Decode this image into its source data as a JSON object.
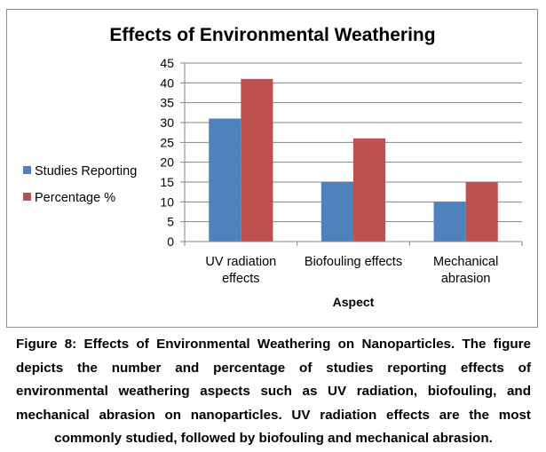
{
  "chart_data": {
    "type": "bar",
    "title": "Effects of Environmental Weathering",
    "xlabel": "Aspect",
    "ylabel": "",
    "categories": [
      [
        "UV radiation",
        "effects"
      ],
      [
        "Biofouling effects"
      ],
      [
        "Mechanical",
        "abrasion"
      ]
    ],
    "series": [
      {
        "name": "Studies Reporting",
        "color": "#4f81bd",
        "values": [
          31,
          15,
          10
        ]
      },
      {
        "name": "Percentage %",
        "color": "#c0504d",
        "values": [
          41,
          26,
          15
        ]
      }
    ],
    "ylim": [
      0,
      45
    ],
    "yticks": [
      0,
      5,
      10,
      15,
      20,
      25,
      30,
      35,
      40,
      45
    ],
    "grid": true,
    "legend_position": "left"
  },
  "caption": "Figure 8: Effects of Environmental Weathering on Nanoparticles. The figure depicts the number and percentage of studies reporting effects of environmental weathering aspects such as UV radiation, biofouling, and mechanical abrasion on nanoparticles. UV radiation effects are the most commonly studied, followed by biofouling and mechanical abrasion."
}
